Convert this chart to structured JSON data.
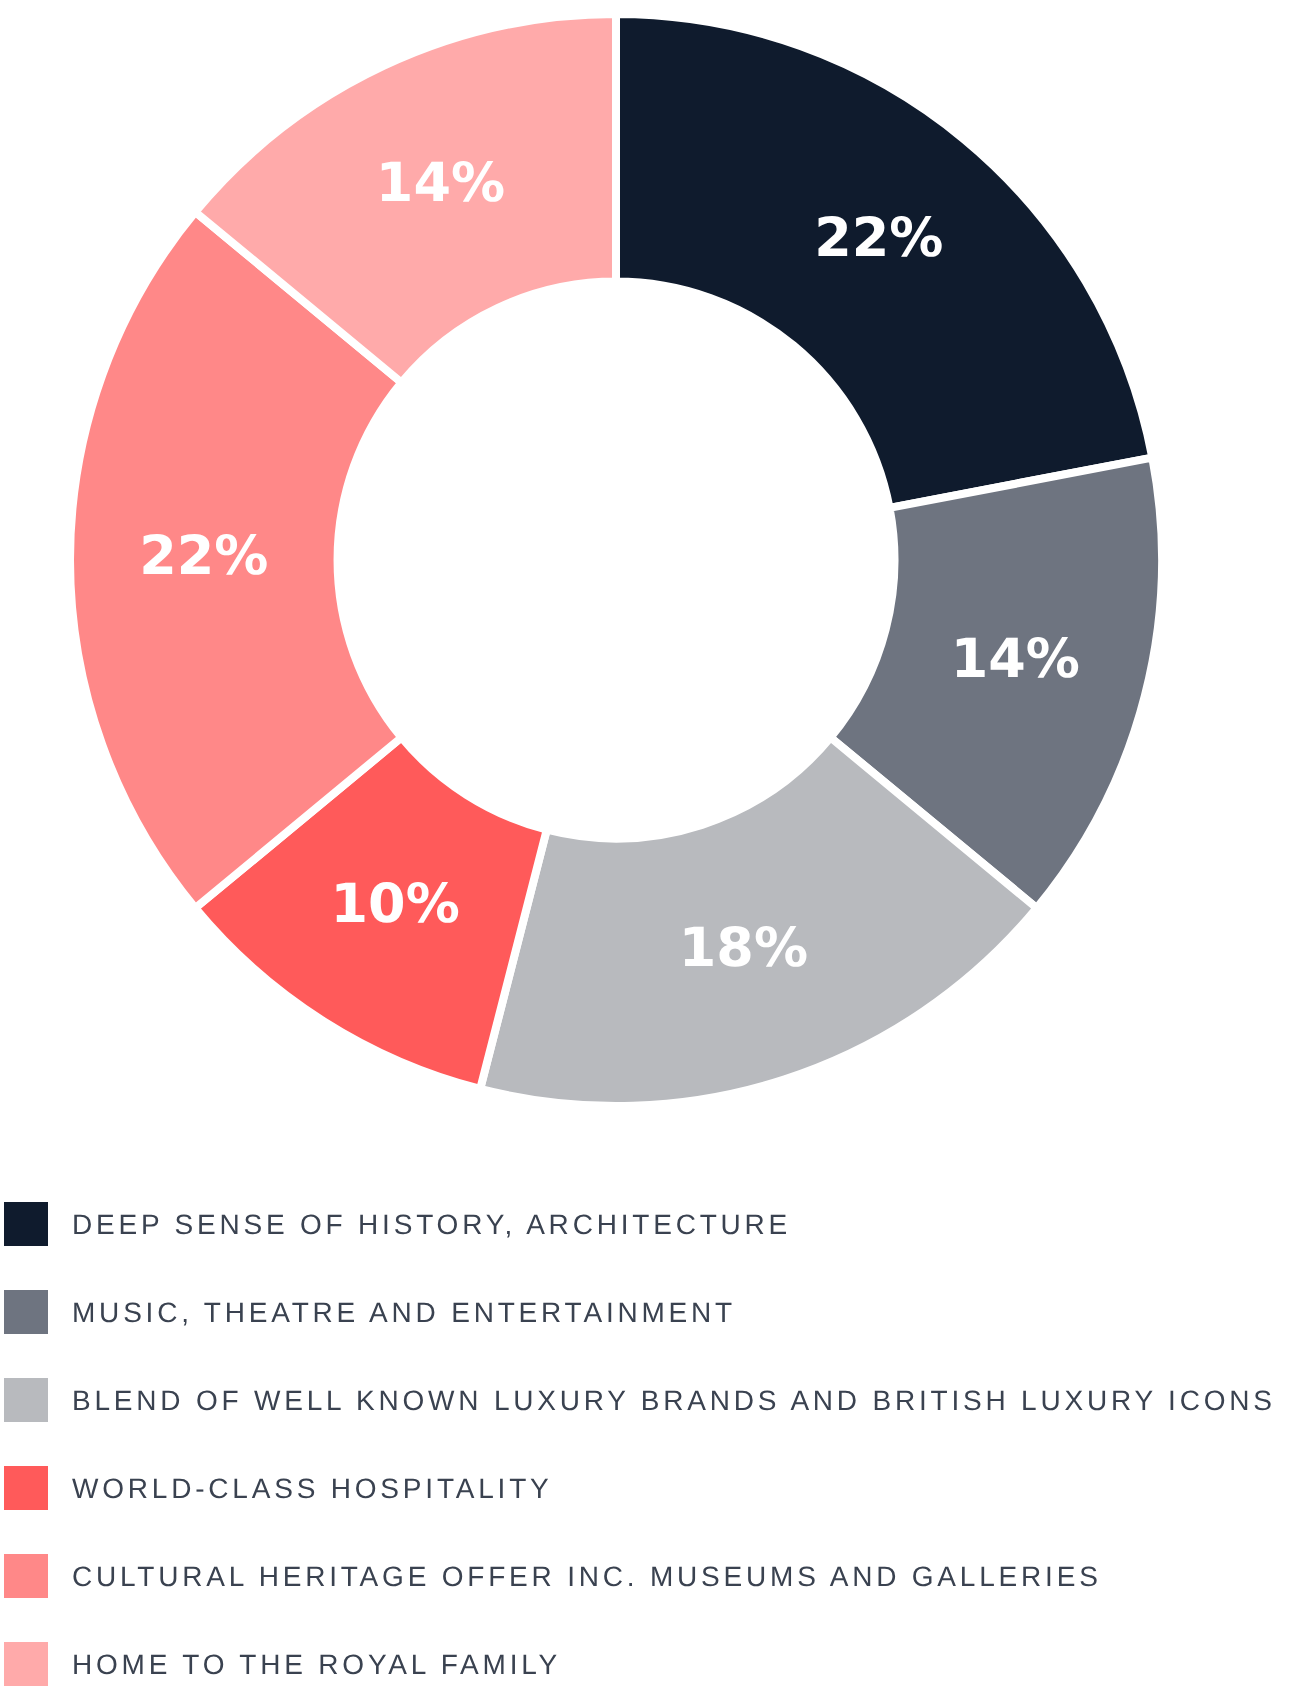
{
  "chart_data": {
    "type": "donut",
    "categories": [
      "DEEP SENSE OF HISTORY, ARCHITECTURE",
      "MUSIC, THEATRE AND ENTERTAINMENT",
      "BLEND OF WELL KNOWN LUXURY BRANDS AND BRITISH LUXURY ICONS",
      "WORLD-CLASS HOSPITALITY",
      "CULTURAL HERITAGE OFFER INC. MUSEUMS AND GALLERIES",
      "HOME TO THE ROYAL FAMILY"
    ],
    "values": [
      22,
      14,
      18,
      10,
      22,
      14
    ],
    "colors": [
      "#0f1b2d",
      "#6e7480",
      "#b8babe",
      "#ff5a5a",
      "#ff8888",
      "#ffaaaa"
    ],
    "value_labels": [
      "22%",
      "14%",
      "18%",
      "10%",
      "22%",
      "14%"
    ],
    "legend": "bottom"
  }
}
